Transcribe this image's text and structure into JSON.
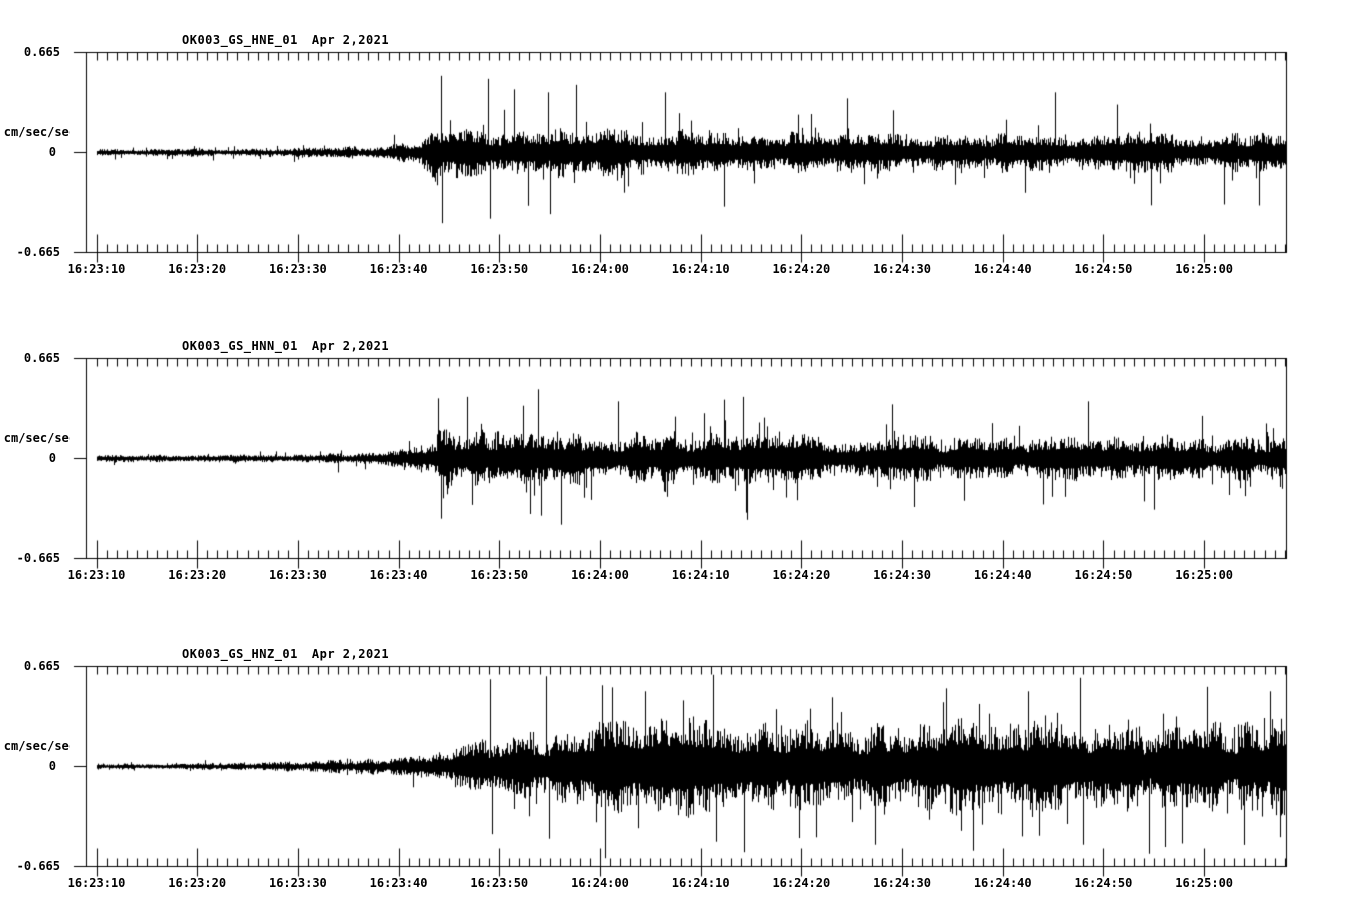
{
  "figure": {
    "background_color": "#ffffff",
    "trace_color": "#000000"
  },
  "chart_data": [
    {
      "type": "line",
      "station_channel": "OK003_GS_HNE_01",
      "date": "Apr 2,2021",
      "ylabel": "cm/sec/sec",
      "ylim": [
        -0.665,
        0.665
      ],
      "ymax_label": "0.665",
      "yzero_label": "0",
      "ymin_label": "-0.665",
      "x_tick_labels": [
        "16:23:10",
        "16:23:20",
        "16:23:30",
        "16:23:40",
        "16:23:50",
        "16:24:00",
        "16:24:10",
        "16:24:20",
        "16:24:30",
        "16:24:40",
        "16:24:50",
        "16:25:00"
      ],
      "x_major_interval_s": 10,
      "x_minor_interval_s": 1,
      "duration_s": 118.2,
      "grid": false,
      "legend": "none",
      "seed": 1234,
      "spike_prob": 0.055,
      "spike_factor_max": 2.8,
      "envelope": [
        [
          0,
          0.022
        ],
        [
          18,
          0.023
        ],
        [
          24,
          0.03
        ],
        [
          28,
          0.042
        ],
        [
          31,
          0.065
        ],
        [
          33,
          0.105
        ],
        [
          33.8,
          0.195
        ],
        [
          34.6,
          0.175
        ],
        [
          36,
          0.155
        ],
        [
          40,
          0.145
        ],
        [
          48,
          0.135
        ],
        [
          58,
          0.125
        ],
        [
          70,
          0.118
        ],
        [
          85,
          0.115
        ],
        [
          100,
          0.112
        ],
        [
          110,
          0.115
        ],
        [
          118.2,
          0.11
        ]
      ],
      "spikes": [
        [
          34.2,
          0.51
        ],
        [
          34.35,
          -0.47
        ],
        [
          38.9,
          0.49
        ],
        [
          39.1,
          -0.44
        ],
        [
          41.5,
          0.42
        ],
        [
          44.8,
          0.4
        ],
        [
          45.0,
          -0.41
        ],
        [
          47.6,
          0.45
        ],
        [
          56.5,
          0.4
        ],
        [
          62.3,
          -0.36
        ],
        [
          74.5,
          0.36
        ],
        [
          95.2,
          0.4
        ]
      ]
    },
    {
      "type": "line",
      "station_channel": "OK003_GS_HNN_01",
      "date": "Apr 2,2021",
      "ylabel": "cm/sec/sec",
      "ylim": [
        -0.665,
        0.665
      ],
      "ymax_label": "0.665",
      "yzero_label": "0",
      "ymin_label": "-0.665",
      "x_tick_labels": [
        "16:23:10",
        "16:23:20",
        "16:23:30",
        "16:23:40",
        "16:23:50",
        "16:24:00",
        "16:24:10",
        "16:24:20",
        "16:24:30",
        "16:24:40",
        "16:24:50",
        "16:25:00"
      ],
      "x_major_interval_s": 10,
      "x_minor_interval_s": 1,
      "duration_s": 118.2,
      "grid": false,
      "legend": "none",
      "seed": 5678,
      "spike_prob": 0.055,
      "spike_factor_max": 2.8,
      "envelope": [
        [
          0,
          0.02
        ],
        [
          18,
          0.022
        ],
        [
          24,
          0.03
        ],
        [
          28,
          0.045
        ],
        [
          31,
          0.07
        ],
        [
          33,
          0.115
        ],
        [
          34.5,
          0.165
        ],
        [
          38,
          0.155
        ],
        [
          45,
          0.15
        ],
        [
          55,
          0.145
        ],
        [
          68,
          0.135
        ],
        [
          82,
          0.13
        ],
        [
          96,
          0.13
        ],
        [
          108,
          0.125
        ],
        [
          118.2,
          0.125
        ]
      ],
      "spikes": [
        [
          33.9,
          0.4
        ],
        [
          34.2,
          -0.4
        ],
        [
          36.8,
          0.41
        ],
        [
          43.8,
          0.46
        ],
        [
          44.1,
          -0.38
        ],
        [
          46.1,
          -0.44
        ],
        [
          51.8,
          0.38
        ],
        [
          64.2,
          0.41
        ],
        [
          64.5,
          -0.36
        ],
        [
          79.0,
          0.36
        ],
        [
          98.5,
          0.38
        ],
        [
          105.0,
          -0.34
        ]
      ]
    },
    {
      "type": "line",
      "station_channel": "OK003_GS_HNZ_01",
      "date": "Apr 2,2021",
      "ylabel": "cm/sec/sec",
      "ylim": [
        -0.665,
        0.665
      ],
      "ymax_label": "0.665",
      "yzero_label": "0",
      "ymin_label": "-0.665",
      "x_tick_labels": [
        "16:23:10",
        "16:23:20",
        "16:23:30",
        "16:23:40",
        "16:23:50",
        "16:24:00",
        "16:24:10",
        "16:24:20",
        "16:24:30",
        "16:24:40",
        "16:24:50",
        "16:25:00"
      ],
      "x_major_interval_s": 10,
      "x_minor_interval_s": 1,
      "duration_s": 118.2,
      "grid": false,
      "legend": "none",
      "seed": 9012,
      "spike_prob": 0.05,
      "spike_factor_max": 2.1,
      "envelope": [
        [
          0,
          0.02
        ],
        [
          10,
          0.021
        ],
        [
          16,
          0.025
        ],
        [
          22,
          0.034
        ],
        [
          27,
          0.048
        ],
        [
          31,
          0.068
        ],
        [
          34,
          0.095
        ],
        [
          38,
          0.14
        ],
        [
          42,
          0.19
        ],
        [
          46,
          0.235
        ],
        [
          52,
          0.27
        ],
        [
          58,
          0.285
        ],
        [
          64,
          0.28
        ],
        [
          70,
          0.27
        ],
        [
          76,
          0.26
        ],
        [
          82,
          0.27
        ],
        [
          88,
          0.285
        ],
        [
          94,
          0.28
        ],
        [
          100,
          0.27
        ],
        [
          106,
          0.26
        ],
        [
          112,
          0.27
        ],
        [
          118.2,
          0.265
        ]
      ],
      "spikes": [
        [
          39.1,
          0.58
        ],
        [
          39.3,
          -0.45
        ],
        [
          44.6,
          0.6
        ],
        [
          44.9,
          -0.48
        ],
        [
          50.2,
          0.54
        ],
        [
          50.45,
          -0.61
        ],
        [
          54.5,
          0.5
        ],
        [
          61.2,
          0.61
        ],
        [
          61.5,
          -0.5
        ],
        [
          64.3,
          -0.57
        ],
        [
          73.0,
          0.46
        ],
        [
          77.3,
          -0.52
        ],
        [
          87.0,
          -0.56
        ],
        [
          92.5,
          0.5
        ],
        [
          97.7,
          0.59
        ],
        [
          98.0,
          -0.52
        ],
        [
          104.5,
          -0.58
        ],
        [
          110.3,
          0.53
        ],
        [
          116.5,
          0.5
        ],
        [
          117.5,
          -0.47
        ]
      ]
    }
  ]
}
